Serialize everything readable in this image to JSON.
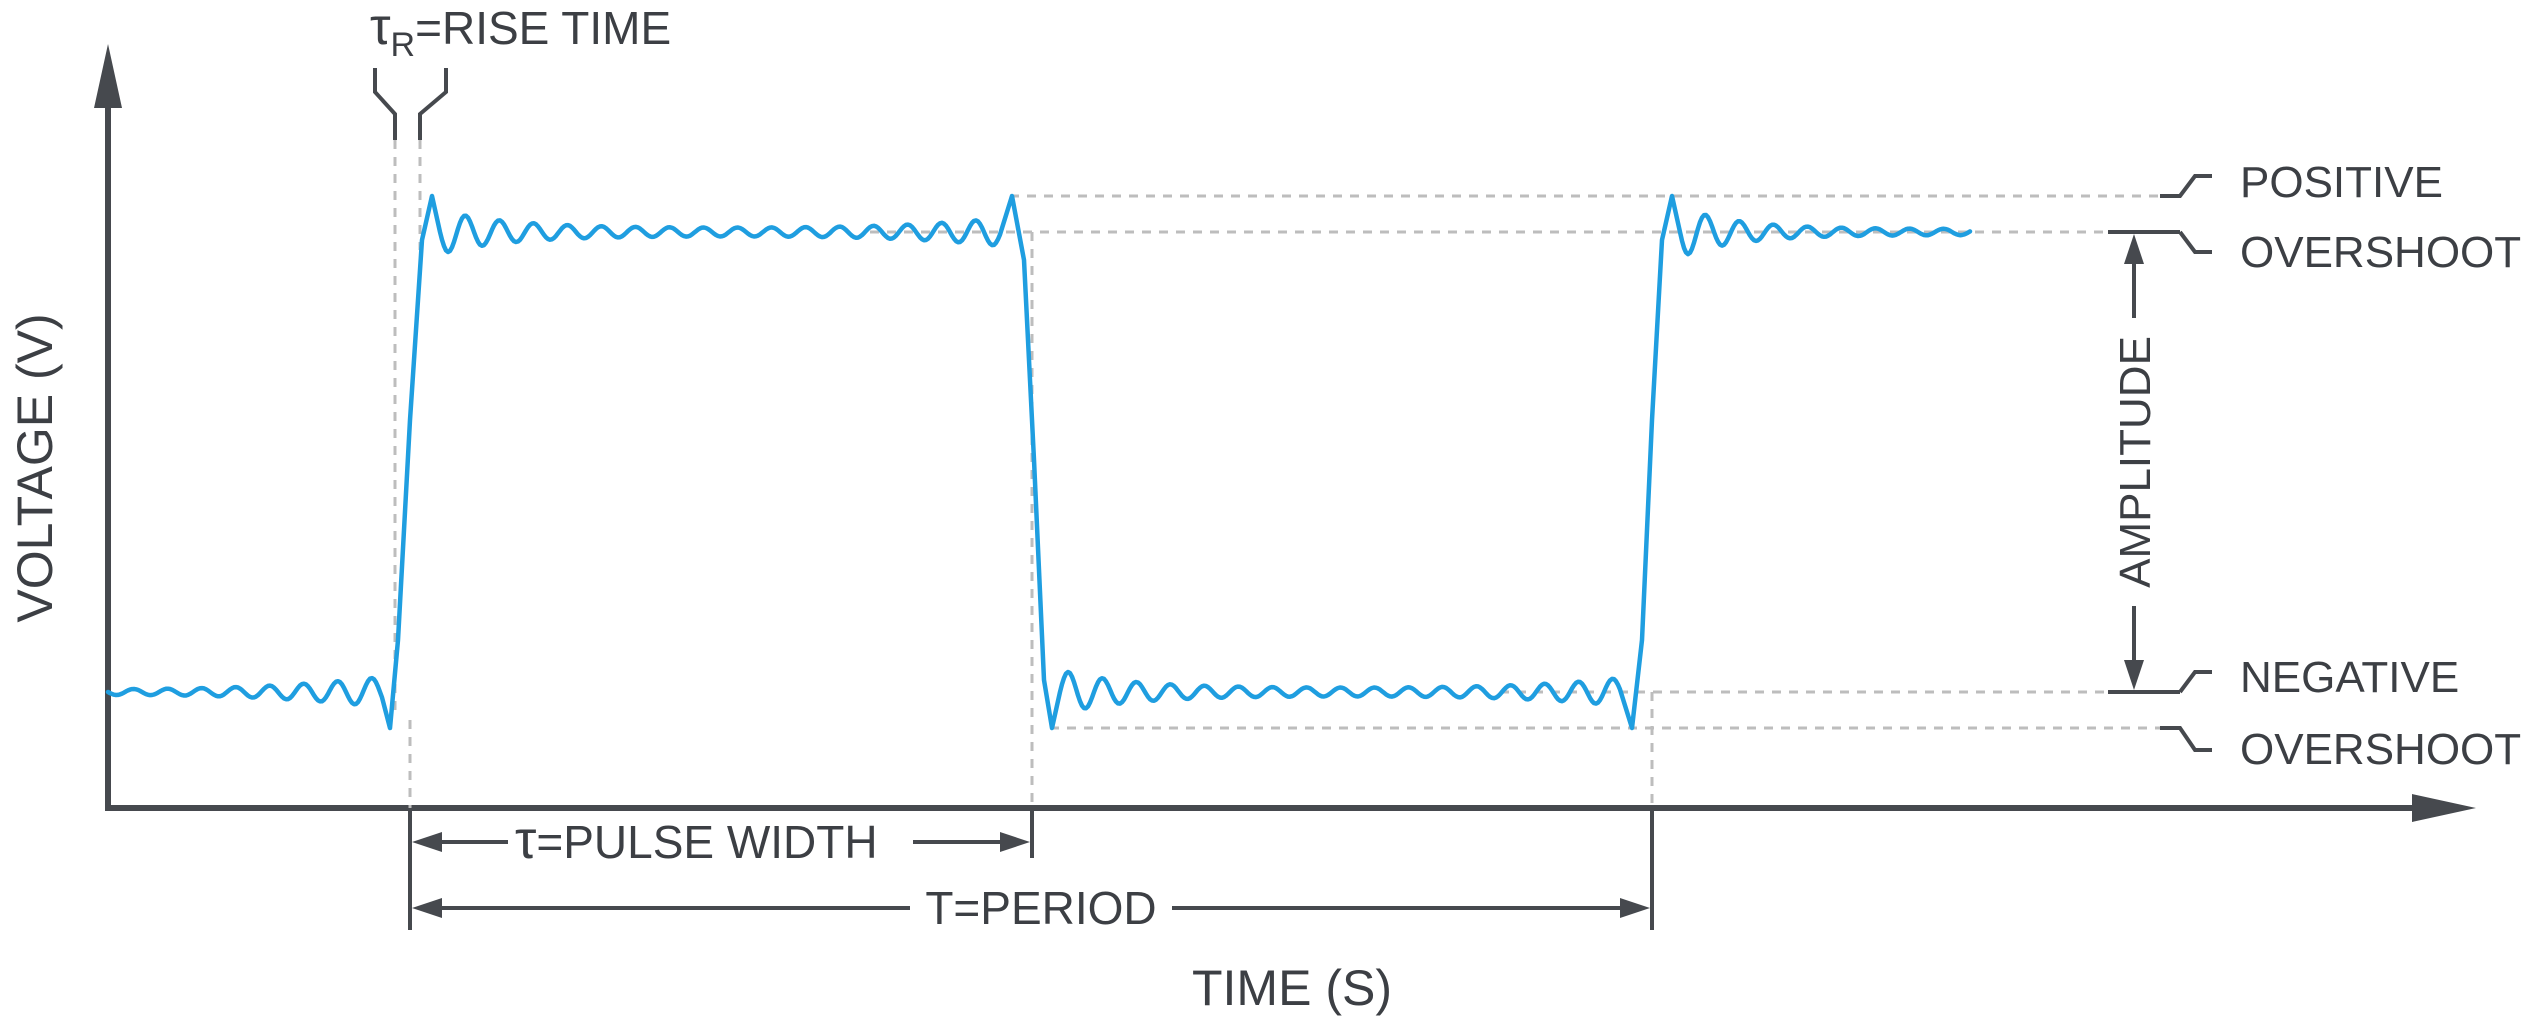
{
  "y_axis_label": "VOLTAGE (V)",
  "x_axis_label": "TIME (S)",
  "rise_time": {
    "symbol": "τ",
    "subscript": "R",
    "text": "=RISE TIME"
  },
  "pulse_width": {
    "symbol": "τ",
    "text": "=PULSE WIDTH"
  },
  "period": {
    "text": "T=PERIOD"
  },
  "amplitude": {
    "text": "AMPLITUDE"
  },
  "positive_overshoot": {
    "line1": "POSITIVE",
    "line2": "OVERSHOOT"
  },
  "negative_overshoot": {
    "line1": "NEGATIVE",
    "line2": "OVERSHOOT"
  },
  "colors": {
    "signal": "#1f9ee0",
    "axis": "#46494e",
    "guide": "#bdbdbd",
    "text": "#3c3f44"
  }
}
